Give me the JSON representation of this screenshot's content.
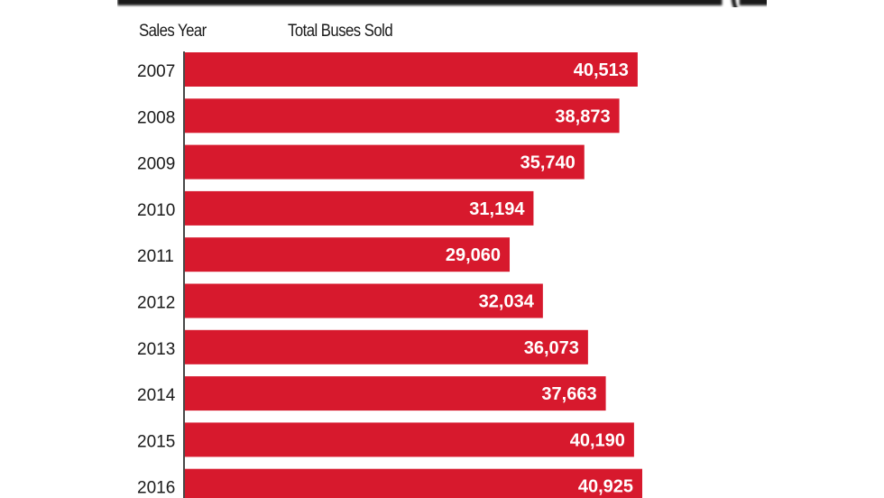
{
  "chart_data": {
    "type": "bar",
    "orientation": "horizontal",
    "title": "",
    "category_header": "Sales Year",
    "value_header": "Total Buses Sold",
    "categories": [
      "2007",
      "2008",
      "2009",
      "2010",
      "2011",
      "2012",
      "2013",
      "2014",
      "2015",
      "2016"
    ],
    "values": [
      40513,
      38873,
      35740,
      31194,
      29060,
      32034,
      36073,
      37663,
      40190,
      40925
    ],
    "value_labels": [
      "40,513",
      "38,873",
      "35,740",
      "31,194",
      "29,060",
      "32,034",
      "36,073",
      "37,663",
      "40,190",
      "40,925"
    ],
    "xlim": [
      0,
      40925
    ],
    "bar_color": "#d7192d",
    "label_color": "#ffffff",
    "axis_color": "#1a1a1a",
    "grid": false
  }
}
